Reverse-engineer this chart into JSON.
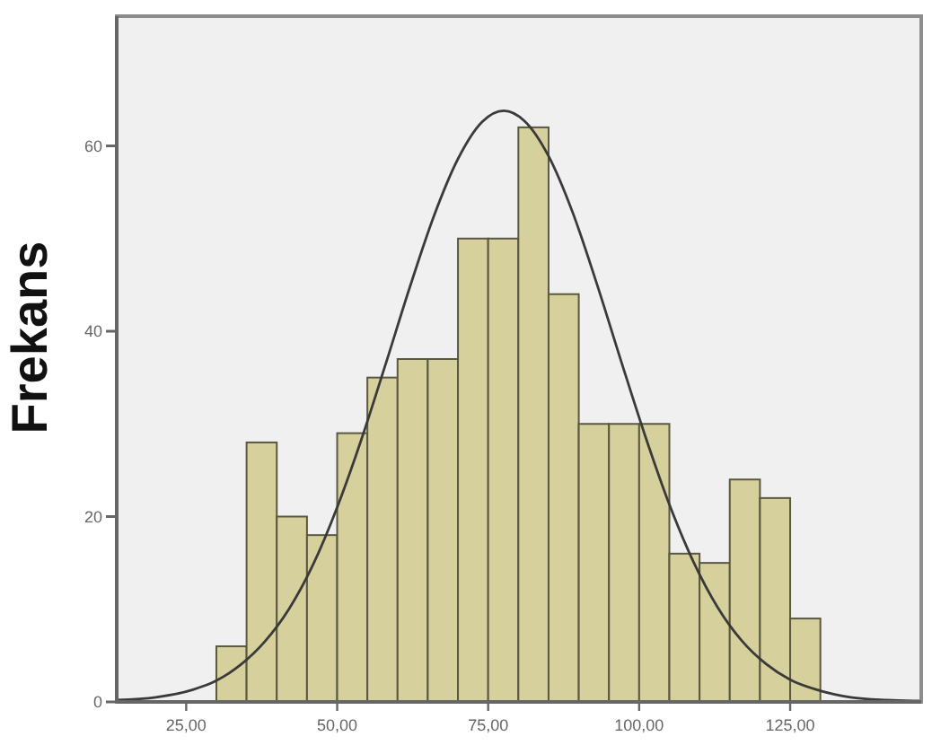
{
  "chart_data": {
    "type": "histogram",
    "ylabel": "Frekans",
    "series": [
      {
        "color": "#d6d19c",
        "bins": [
          30,
          35,
          40,
          45,
          50,
          55,
          60,
          65,
          70,
          75,
          80,
          85,
          90,
          95,
          100,
          105,
          110,
          115,
          120,
          125,
          130
        ],
        "values": [
          6,
          28,
          20,
          18,
          29,
          35,
          37,
          37,
          50,
          50,
          62,
          44,
          30,
          30,
          30,
          16,
          15,
          24,
          22,
          9
        ]
      },
      {
        "type": "line",
        "color": "#3a3a3a",
        "x": [
          13.5,
          20,
          26,
          30,
          34,
          38,
          42,
          46,
          50,
          54,
          58,
          62,
          66,
          70,
          74,
          77.6,
          81,
          85,
          89,
          93,
          97,
          101,
          105,
          109,
          113,
          117,
          121,
          125,
          130,
          135,
          141,
          146.7
        ],
        "values": [
          0.2,
          0.5,
          1.3,
          2.3,
          4.0,
          6.5,
          10.0,
          14.8,
          21.0,
          28.3,
          36.4,
          44.7,
          52.4,
          58.6,
          62.6,
          63.8,
          62.7,
          58.9,
          52.8,
          45.1,
          36.8,
          28.7,
          21.3,
          15.1,
          10.2,
          6.6,
          4.1,
          2.4,
          1.2,
          0.5,
          0.2,
          0.1
        ]
      }
    ],
    "xlim": [
      13.5,
      146.7
    ],
    "xticks": [
      {
        "value": 25,
        "label": "25,00"
      },
      {
        "value": 50,
        "label": "50,00"
      },
      {
        "value": 75,
        "label": "75,00"
      },
      {
        "value": 100,
        "label": "100,00"
      },
      {
        "value": 125,
        "label": "125,00"
      }
    ],
    "ylim": [
      0,
      74
    ],
    "yticks": [
      0,
      20,
      40,
      60
    ],
    "grid": false
  }
}
